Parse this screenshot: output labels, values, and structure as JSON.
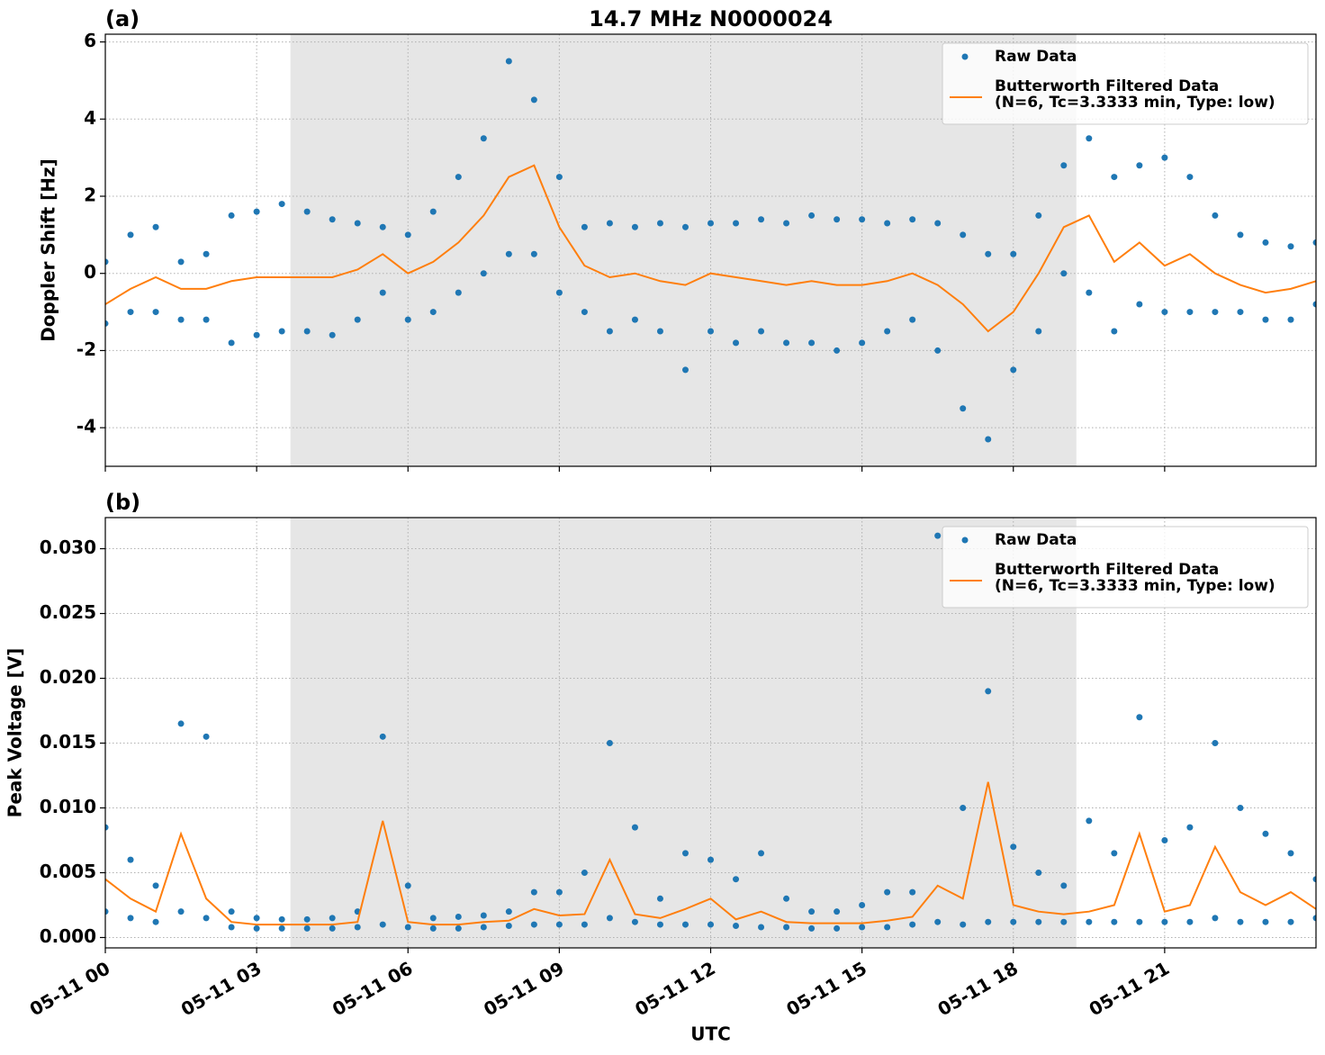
{
  "chart_data": [
    {
      "type": "line",
      "panel_label": "(a)",
      "title": "14.7 MHz N0000024",
      "ylabel": "Doppler Shift [Hz]",
      "xlim": [
        0,
        24
      ],
      "xticks": [
        0,
        3,
        6,
        9,
        12,
        15,
        18,
        21
      ],
      "xtick_labels": false,
      "ylim": [
        -5,
        6.2
      ],
      "yticks": [
        -4,
        -2,
        0,
        2,
        4,
        6
      ],
      "grid": true,
      "legend": "upper right",
      "shaded_span": [
        3.67,
        19.25
      ],
      "shade_color": "#e6e6e6",
      "x": [
        0,
        0.5,
        1,
        1.5,
        2,
        2.5,
        3,
        3.5,
        4,
        4.5,
        5,
        5.5,
        6,
        6.5,
        7,
        7.5,
        8,
        8.5,
        9,
        9.5,
        10,
        10.5,
        11,
        11.5,
        12,
        12.5,
        13,
        13.5,
        14,
        14.5,
        15,
        15.5,
        16,
        16.5,
        17,
        17.5,
        18,
        18.5,
        19,
        19.5,
        20,
        20.5,
        21,
        21.5,
        22,
        22.5,
        23,
        23.5,
        24
      ],
      "series": [
        {
          "name": "Raw Data",
          "mark": "scatter",
          "color": "#1f77b4",
          "x": [
            0,
            0,
            0.5,
            0.5,
            1,
            1,
            1.5,
            1.5,
            2,
            2,
            2.5,
            2.5,
            3,
            3,
            3.5,
            3.5,
            4,
            4,
            4.5,
            4.5,
            5,
            5,
            5.5,
            5.5,
            6,
            6,
            6.5,
            6.5,
            7,
            7,
            7.5,
            7.5,
            8,
            8,
            8.5,
            8.5,
            9,
            9,
            9.5,
            9.5,
            10,
            10,
            10.5,
            10.5,
            11,
            11,
            11.5,
            11.5,
            12,
            12,
            12.5,
            12.5,
            13,
            13,
            13.5,
            13.5,
            14,
            14,
            14.5,
            14.5,
            15,
            15,
            15.5,
            15.5,
            16,
            16,
            16.5,
            16.5,
            17,
            17,
            17.5,
            17.5,
            18,
            18,
            18.5,
            18.5,
            19,
            19,
            19.5,
            19.5,
            20,
            20,
            20.5,
            20.5,
            21,
            21,
            21.5,
            21.5,
            22,
            22,
            22.5,
            22.5,
            23,
            23,
            23.5,
            23.5,
            24,
            24
          ],
          "values": [
            0.3,
            -1.3,
            1.0,
            -1.0,
            1.2,
            -1.0,
            0.3,
            -1.2,
            0.5,
            -1.2,
            1.5,
            -1.8,
            1.6,
            -1.6,
            1.8,
            -1.5,
            1.6,
            -1.5,
            1.4,
            -1.6,
            1.3,
            -1.2,
            1.2,
            -0.5,
            1.0,
            -1.2,
            1.6,
            -1.0,
            2.5,
            -0.5,
            3.5,
            0.0,
            5.5,
            0.5,
            4.5,
            0.5,
            2.5,
            -0.5,
            1.2,
            -1.0,
            1.3,
            -1.5,
            1.2,
            -1.2,
            1.3,
            -1.5,
            1.2,
            -2.5,
            1.3,
            -1.5,
            1.3,
            -1.8,
            1.4,
            -1.5,
            1.3,
            -1.8,
            1.5,
            -1.8,
            1.4,
            -2.0,
            1.4,
            -1.8,
            1.3,
            -1.5,
            1.4,
            -1.2,
            1.3,
            -2.0,
            1.0,
            -3.5,
            0.5,
            -4.3,
            0.5,
            -2.5,
            1.5,
            -1.5,
            2.8,
            0.0,
            3.5,
            -0.5,
            2.5,
            -1.5,
            2.8,
            -0.8,
            3.0,
            -1.0,
            2.5,
            -1.0,
            1.5,
            -1.0,
            1.0,
            -1.0,
            0.8,
            -1.2,
            0.7,
            -1.2,
            0.8,
            -0.8
          ]
        },
        {
          "name": "Butterworth Filtered Data\n(N=6, Tc=3.3333 min, Type: low)",
          "mark": "line",
          "color": "#ff7f0e",
          "values": [
            -0.8,
            -0.4,
            -0.1,
            -0.4,
            -0.4,
            -0.2,
            -0.1,
            -0.1,
            -0.1,
            -0.1,
            0.1,
            0.5,
            0.0,
            0.3,
            0.8,
            1.5,
            2.5,
            2.8,
            1.2,
            0.2,
            -0.1,
            0.0,
            -0.2,
            -0.3,
            0.0,
            -0.1,
            -0.2,
            -0.3,
            -0.2,
            -0.3,
            -0.3,
            -0.2,
            0.0,
            -0.3,
            -0.8,
            -1.5,
            -1.0,
            0.0,
            1.2,
            1.5,
            0.3,
            0.8,
            0.2,
            0.5,
            0.0,
            -0.3,
            -0.5,
            -0.4,
            -0.2
          ]
        }
      ]
    },
    {
      "type": "line",
      "panel_label": "(b)",
      "ylabel": "Peak Voltage [V]",
      "xlabel": "UTC",
      "xlim": [
        0,
        24
      ],
      "xticks": [
        {
          "value": 0,
          "label": "05-11 00"
        },
        {
          "value": 3,
          "label": "05-11 03"
        },
        {
          "value": 6,
          "label": "05-11 06"
        },
        {
          "value": 9,
          "label": "05-11 09"
        },
        {
          "value": 12,
          "label": "05-11 12"
        },
        {
          "value": 15,
          "label": "05-11 15"
        },
        {
          "value": 18,
          "label": "05-11 18"
        },
        {
          "value": 21,
          "label": "05-11 21"
        }
      ],
      "xtick_labels": true,
      "ylim": [
        -0.0008,
        0.0324
      ],
      "yticks": [
        {
          "value": 0,
          "label": "0.000"
        },
        0.005,
        {
          "value": 0.01,
          "label": "0.010"
        },
        0.015,
        {
          "value": 0.02,
          "label": "0.020"
        },
        0.025,
        {
          "value": 0.03,
          "label": "0.030"
        }
      ],
      "grid": true,
      "legend": "upper right",
      "shaded_span": [
        3.67,
        19.25
      ],
      "shade_color": "#e6e6e6",
      "x": [
        0,
        0.5,
        1,
        1.5,
        2,
        2.5,
        3,
        3.5,
        4,
        4.5,
        5,
        5.5,
        6,
        6.5,
        7,
        7.5,
        8,
        8.5,
        9,
        9.5,
        10,
        10.5,
        11,
        11.5,
        12,
        12.5,
        13,
        13.5,
        14,
        14.5,
        15,
        15.5,
        16,
        16.5,
        17,
        17.5,
        18,
        18.5,
        19,
        19.5,
        20,
        20.5,
        21,
        21.5,
        22,
        22.5,
        23,
        23.5,
        24
      ],
      "series": [
        {
          "name": "Raw Data",
          "mark": "scatter",
          "color": "#1f77b4",
          "x": [
            0,
            0,
            0.5,
            0.5,
            1,
            1,
            1.5,
            1.5,
            2,
            2,
            2.5,
            2.5,
            3,
            3,
            3.5,
            3.5,
            4,
            4,
            4.5,
            4.5,
            5,
            5,
            5.5,
            5.5,
            6,
            6,
            6.5,
            6.5,
            7,
            7,
            7.5,
            7.5,
            8,
            8,
            8.5,
            8.5,
            9,
            9,
            9.5,
            9.5,
            10,
            10,
            10.5,
            10.5,
            11,
            11,
            11.5,
            11.5,
            12,
            12,
            12.5,
            12.5,
            13,
            13,
            13.5,
            13.5,
            14,
            14,
            14.5,
            14.5,
            15,
            15,
            15.5,
            15.5,
            16,
            16,
            16.5,
            16.5,
            17,
            17,
            17.5,
            17.5,
            18,
            18,
            18.5,
            18.5,
            19,
            19,
            19.5,
            19.5,
            20,
            20,
            20.5,
            20.5,
            21,
            21,
            21.5,
            21.5,
            22,
            22,
            22.5,
            22.5,
            23,
            23,
            23.5,
            23.5,
            24,
            24
          ],
          "values": [
            0.0085,
            0.002,
            0.006,
            0.0015,
            0.004,
            0.0012,
            0.0165,
            0.002,
            0.0155,
            0.0015,
            0.002,
            0.0008,
            0.0015,
            0.0007,
            0.0014,
            0.0007,
            0.0014,
            0.0007,
            0.0015,
            0.0007,
            0.002,
            0.0008,
            0.0155,
            0.001,
            0.004,
            0.0008,
            0.0015,
            0.0007,
            0.0016,
            0.0007,
            0.0017,
            0.0008,
            0.002,
            0.0009,
            0.0035,
            0.001,
            0.0035,
            0.001,
            0.005,
            0.001,
            0.015,
            0.0015,
            0.0085,
            0.0012,
            0.003,
            0.001,
            0.0065,
            0.001,
            0.006,
            0.001,
            0.0045,
            0.0009,
            0.0065,
            0.0008,
            0.003,
            0.0008,
            0.002,
            0.0007,
            0.002,
            0.0007,
            0.0025,
            0.0008,
            0.0035,
            0.0008,
            0.0035,
            0.001,
            0.031,
            0.0012,
            0.01,
            0.001,
            0.019,
            0.0012,
            0.007,
            0.0012,
            0.005,
            0.0012,
            0.004,
            0.0012,
            0.009,
            0.0012,
            0.0065,
            0.0012,
            0.017,
            0.0012,
            0.0075,
            0.0012,
            0.0085,
            0.0012,
            0.015,
            0.0015,
            0.01,
            0.0012,
            0.008,
            0.0012,
            0.0065,
            0.0012,
            0.0045,
            0.0015
          ]
        },
        {
          "name": "Butterworth Filtered Data\n(N=6, Tc=3.3333 min, Type: low)",
          "mark": "line",
          "color": "#ff7f0e",
          "values": [
            0.0045,
            0.003,
            0.002,
            0.008,
            0.003,
            0.0012,
            0.001,
            0.001,
            0.001,
            0.001,
            0.0012,
            0.009,
            0.0012,
            0.001,
            0.001,
            0.0012,
            0.0013,
            0.0022,
            0.0017,
            0.0018,
            0.006,
            0.0018,
            0.0015,
            0.0022,
            0.003,
            0.0014,
            0.002,
            0.0012,
            0.0011,
            0.0011,
            0.0011,
            0.0013,
            0.0016,
            0.004,
            0.003,
            0.012,
            0.0025,
            0.002,
            0.0018,
            0.002,
            0.0025,
            0.008,
            0.002,
            0.0025,
            0.007,
            0.0035,
            0.0025,
            0.0035,
            0.0022
          ]
        }
      ]
    }
  ]
}
